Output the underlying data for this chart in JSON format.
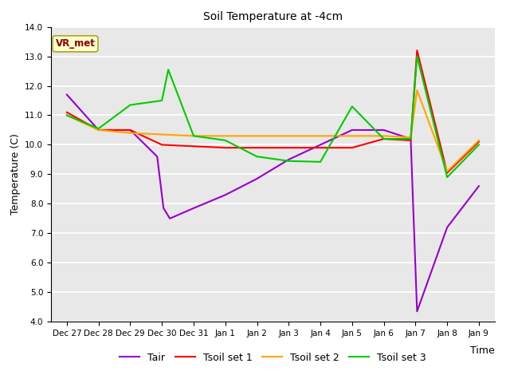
{
  "title": "Soil Temperature at -4cm",
  "xlabel": "Time",
  "ylabel": "Temperature (C)",
  "ylim": [
    4.0,
    14.0
  ],
  "yticks": [
    4.0,
    5.0,
    6.0,
    7.0,
    8.0,
    9.0,
    10.0,
    11.0,
    12.0,
    13.0,
    14.0
  ],
  "x_labels": [
    "Dec 27",
    "Dec 28",
    "Dec 29",
    "Dec 30",
    "Dec 31",
    "Jan 1",
    "Jan 2",
    "Jan 3",
    "Jan 4",
    "Jan 5",
    "Jan 6",
    "Jan 7",
    "Jan 8",
    "Jan 9"
  ],
  "annotation_text": "VR_met",
  "annotation_color": "#8B0000",
  "annotation_bg": "#FFFFCC",
  "annotation_edge": "#999900",
  "plot_bg": "#E8E8E8",
  "fig_bg": "#FFFFFF",
  "grid_color": "#FFFFFF",
  "tair_x": [
    0,
    1,
    2,
    2.85,
    3.05,
    3.25,
    4,
    5,
    6,
    7,
    8,
    9,
    10,
    10.85,
    11.05,
    12,
    13
  ],
  "tair_y": [
    11.7,
    10.5,
    10.5,
    9.6,
    7.85,
    7.5,
    7.85,
    8.3,
    8.85,
    9.5,
    10.0,
    10.5,
    10.5,
    10.2,
    4.35,
    7.2,
    8.6
  ],
  "tsoil1_x": [
    0,
    1,
    2,
    3,
    4,
    5,
    6,
    7,
    8,
    9,
    10,
    10.85,
    11.05,
    12,
    13
  ],
  "tsoil1_y": [
    11.1,
    10.5,
    10.5,
    10.0,
    9.95,
    9.9,
    9.9,
    9.9,
    9.9,
    9.9,
    10.2,
    10.15,
    13.2,
    9.05,
    10.1
  ],
  "tsoil2_x": [
    0,
    1,
    2,
    3,
    4,
    5,
    6,
    7,
    8,
    9,
    10,
    10.85,
    11.05,
    12,
    13
  ],
  "tsoil2_y": [
    11.0,
    10.5,
    10.4,
    10.35,
    10.3,
    10.3,
    10.3,
    10.3,
    10.3,
    10.3,
    10.3,
    10.25,
    11.85,
    9.1,
    10.15
  ],
  "tsoil3_x": [
    0,
    1,
    2,
    3,
    3.2,
    4,
    5,
    6,
    7,
    8,
    9,
    10,
    10.85,
    11.05,
    12,
    13
  ],
  "tsoil3_y": [
    11.0,
    10.55,
    11.35,
    11.5,
    12.55,
    10.3,
    10.15,
    9.6,
    9.45,
    9.42,
    11.3,
    10.2,
    10.2,
    13.0,
    8.9,
    10.0
  ],
  "line_colors": {
    "Tair": "#9900CC",
    "Tsoil set 1": "#FF0000",
    "Tsoil set 2": "#FFA500",
    "Tsoil set 3": "#00CC00"
  },
  "linewidth": 1.5
}
